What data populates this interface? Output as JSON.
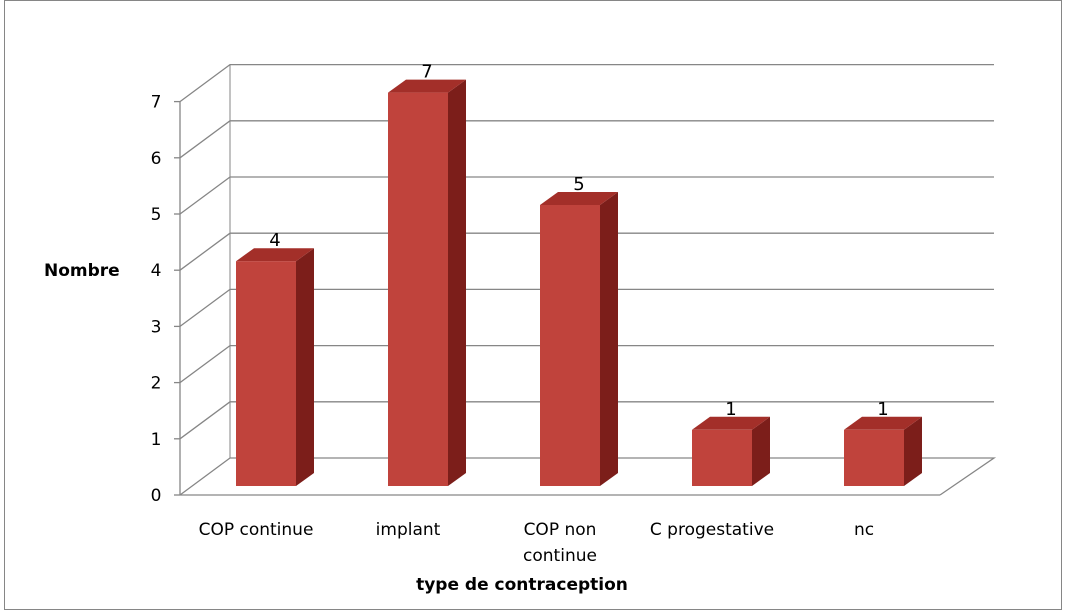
{
  "chart_data": {
    "type": "bar",
    "style": "3d-column",
    "categories": [
      "COP continue",
      "implant",
      "COP non continue",
      "C progestative",
      "nc"
    ],
    "category_lines": [
      [
        "COP continue"
      ],
      [
        "implant"
      ],
      [
        "COP non",
        "continue"
      ],
      [
        "C progestative"
      ],
      [
        "nc"
      ]
    ],
    "values": [
      4,
      7,
      5,
      1,
      1
    ],
    "data_labels": [
      "4",
      "7",
      "5",
      "1",
      "1"
    ],
    "xlabel": "type de contraception",
    "ylabel": "Nombre",
    "ylim": [
      0,
      7
    ],
    "yticks": [
      "0",
      "1",
      "2",
      "3",
      "4",
      "5",
      "6",
      "7"
    ],
    "grid": true,
    "legend": "none",
    "colors": {
      "bar_front": "#C0433C",
      "bar_side": "#7C1E1A",
      "bar_top": "#A32F29",
      "grid": "#868686",
      "border": "#868686"
    }
  }
}
